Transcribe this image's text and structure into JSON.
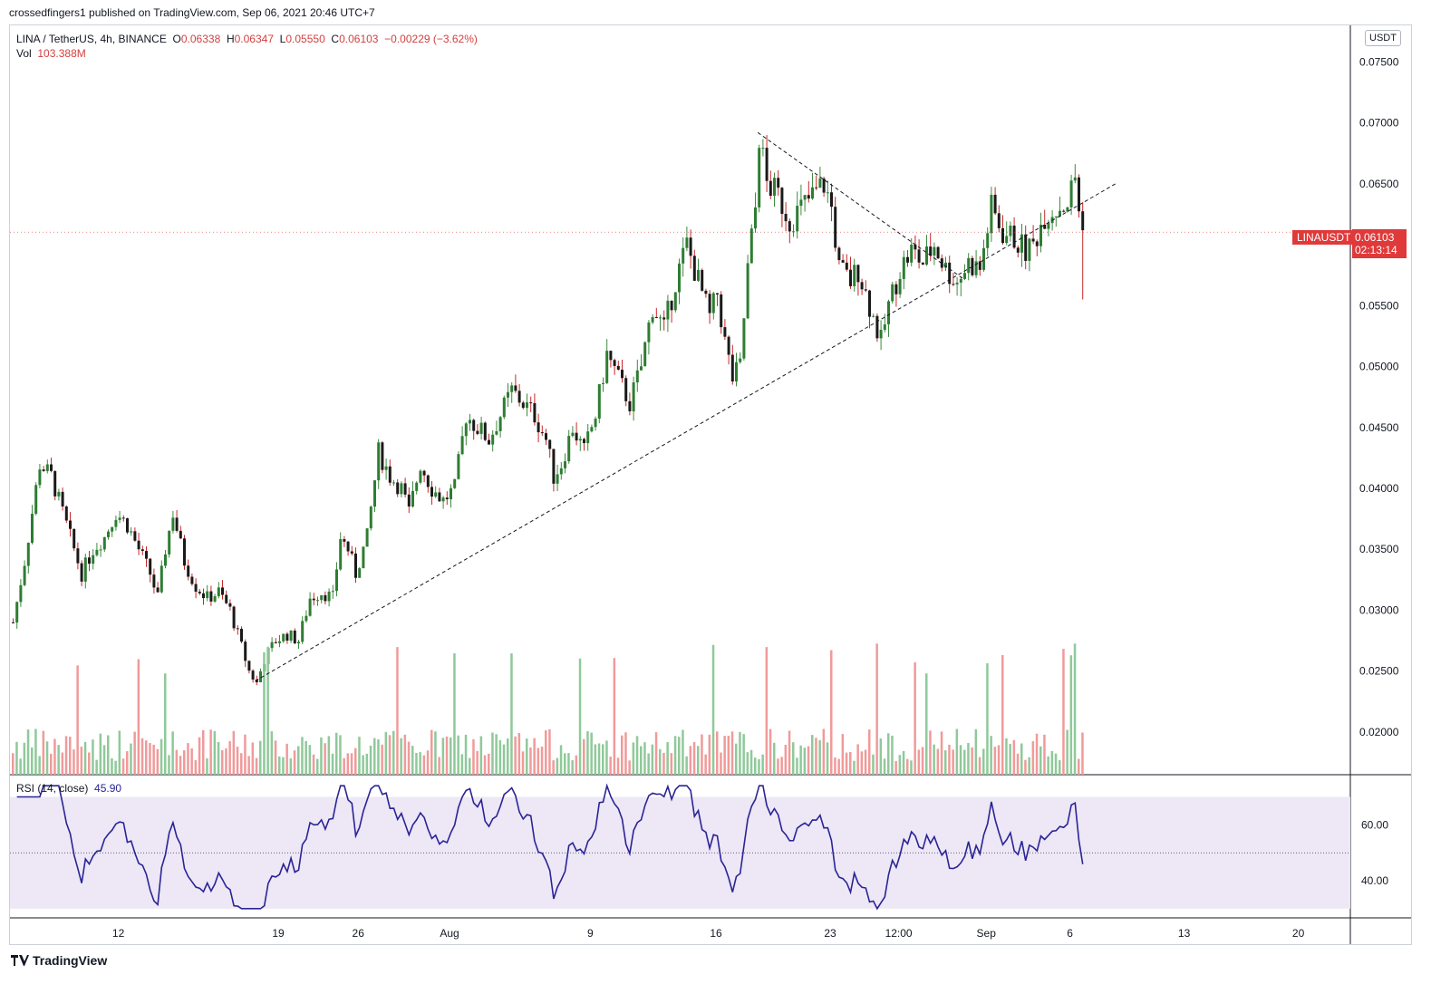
{
  "header": {
    "published": "crossedfingers1 published on TradingView.com, Sep 06, 2021 20:46 UTC+7"
  },
  "legend": {
    "symbol": "LINA / TetherUS, 4h, BINANCE",
    "open_label": "O",
    "open": "0.06338",
    "high_label": "H",
    "high": "0.06347",
    "low_label": "L",
    "low": "0.05550",
    "close_label": "C",
    "close": "0.06103",
    "change": "−0.00229 (−3.62%)",
    "vol_label": "Vol",
    "vol": "103.388M"
  },
  "rsi_legend": {
    "label": "RSI (14, close)",
    "value": "45.90"
  },
  "price_axis": {
    "unit": "USDT",
    "last_symbol": "LINAUSDT",
    "last_price": "0.06103",
    "countdown": "02:13:14"
  },
  "brand": {
    "name": "TradingView"
  },
  "colors": {
    "up": "#26a69a",
    "down": "#ef5350",
    "candle_body_up": "#3a7a3a",
    "rsi_line": "#2a2495",
    "rsi_band": "#ede7f6",
    "tag": "#e0393a"
  },
  "chart_data": {
    "type": "candlestick",
    "timeframe": "4h",
    "y_ticks": [
      "0.07500",
      "0.07000",
      "0.06500",
      "0.06000",
      "0.05500",
      "0.05000",
      "0.04500",
      "0.04000",
      "0.03500",
      "0.03000",
      "0.02500",
      "0.02000"
    ],
    "ylim": [
      0.0165,
      0.078
    ],
    "x_ticks": [
      "12",
      "19",
      "26",
      "Aug",
      "9",
      "16",
      "23",
      "12:00",
      "Sep",
      "6",
      "13",
      "20"
    ],
    "price_path": [
      [
        0,
        0.029
      ],
      [
        3,
        0.034
      ],
      [
        7,
        0.042
      ],
      [
        10,
        0.041
      ],
      [
        13,
        0.038
      ],
      [
        16,
        0.035
      ],
      [
        18,
        0.033
      ],
      [
        21,
        0.035
      ],
      [
        24,
        0.036
      ],
      [
        27,
        0.038
      ],
      [
        30,
        0.037
      ],
      [
        33,
        0.035
      ],
      [
        36,
        0.033
      ],
      [
        38,
        0.031
      ],
      [
        40,
        0.035
      ],
      [
        42,
        0.038
      ],
      [
        45,
        0.034
      ],
      [
        48,
        0.032
      ],
      [
        51,
        0.031
      ],
      [
        54,
        0.0315
      ],
      [
        57,
        0.03
      ],
      [
        60,
        0.027
      ],
      [
        62,
        0.025
      ],
      [
        64,
        0.024
      ],
      [
        66,
        0.026
      ],
      [
        69,
        0.0275
      ],
      [
        72,
        0.028
      ],
      [
        75,
        0.0275
      ],
      [
        78,
        0.031
      ],
      [
        81,
        0.0315
      ],
      [
        84,
        0.031
      ],
      [
        86,
        0.036
      ],
      [
        88,
        0.035
      ],
      [
        90,
        0.033
      ],
      [
        93,
        0.036
      ],
      [
        96,
        0.043
      ],
      [
        99,
        0.041
      ],
      [
        102,
        0.04
      ],
      [
        104,
        0.038
      ],
      [
        107,
        0.042
      ],
      [
        110,
        0.04
      ],
      [
        113,
        0.039
      ],
      [
        116,
        0.04
      ],
      [
        119,
        0.046
      ],
      [
        122,
        0.045
      ],
      [
        125,
        0.044
      ],
      [
        128,
        0.046
      ],
      [
        131,
        0.048
      ],
      [
        134,
        0.047
      ],
      [
        137,
        0.046
      ],
      [
        140,
        0.044
      ],
      [
        142,
        0.041
      ],
      [
        144,
        0.042
      ],
      [
        147,
        0.045
      ],
      [
        150,
        0.043
      ],
      [
        153,
        0.046
      ],
      [
        156,
        0.051
      ],
      [
        159,
        0.049
      ],
      [
        162,
        0.047
      ],
      [
        165,
        0.05
      ],
      [
        168,
        0.055
      ],
      [
        171,
        0.053
      ],
      [
        174,
        0.057
      ],
      [
        177,
        0.06
      ],
      [
        180,
        0.057
      ],
      [
        183,
        0.054
      ],
      [
        185,
        0.056
      ],
      [
        187,
        0.052
      ],
      [
        189,
        0.049
      ],
      [
        191,
        0.05
      ],
      [
        193,
        0.058
      ],
      [
        195,
        0.063
      ],
      [
        196,
        0.069
      ],
      [
        198,
        0.065
      ],
      [
        201,
        0.064
      ],
      [
        204,
        0.062
      ],
      [
        207,
        0.063
      ],
      [
        210,
        0.064
      ],
      [
        213,
        0.065
      ],
      [
        215,
        0.063
      ],
      [
        217,
        0.058
      ],
      [
        220,
        0.057
      ],
      [
        222,
        0.058
      ],
      [
        224,
        0.056
      ],
      [
        226,
        0.054
      ],
      [
        228,
        0.052
      ],
      [
        230,
        0.055
      ],
      [
        233,
        0.058
      ],
      [
        236,
        0.0595
      ],
      [
        239,
        0.0585
      ],
      [
        242,
        0.06
      ],
      [
        245,
        0.058
      ],
      [
        248,
        0.057
      ],
      [
        251,
        0.0585
      ],
      [
        254,
        0.058
      ],
      [
        257,
        0.063
      ],
      [
        260,
        0.061
      ],
      [
        263,
        0.0605
      ],
      [
        266,
        0.0595
      ],
      [
        268,
        0.06
      ],
      [
        271,
        0.0625
      ],
      [
        274,
        0.063
      ],
      [
        277,
        0.0635
      ],
      [
        279,
        0.0655
      ],
      [
        280,
        0.063
      ],
      [
        281,
        0.061
      ]
    ],
    "last_close": 0.06103,
    "last_wick_low": 0.0555,
    "rsi_ticks": [
      "60.00",
      "40.00"
    ],
    "rsi_range": [
      28,
      76
    ],
    "rsi_band": [
      30,
      70
    ],
    "rsi_mid": 50,
    "rsi_last": 45.9,
    "trendlines": [
      {
        "style": "dashed",
        "from": [
          64,
          0.0242
        ],
        "to": [
          290,
          0.065
        ]
      },
      {
        "style": "dashed",
        "from": [
          196,
          0.0692
        ],
        "to": [
          250,
          0.0572
        ]
      }
    ]
  }
}
